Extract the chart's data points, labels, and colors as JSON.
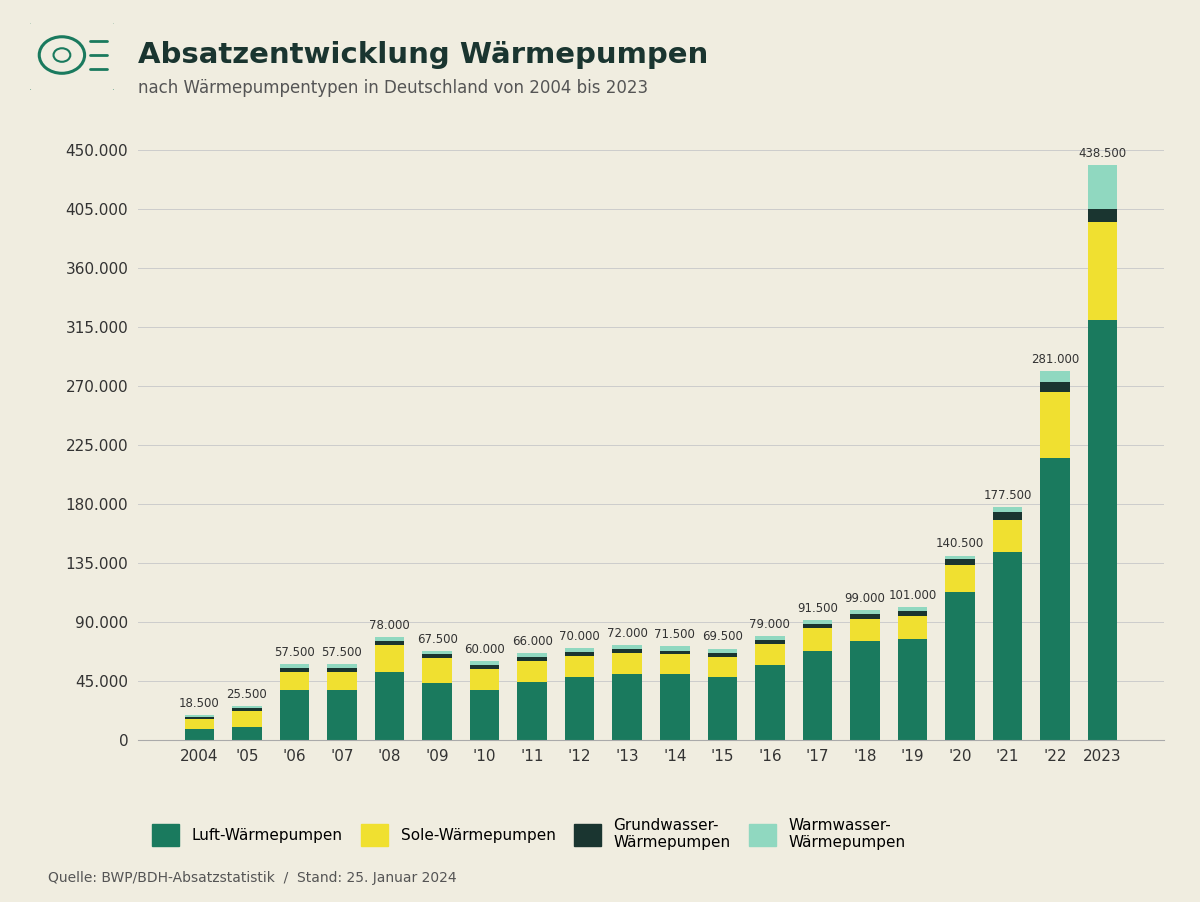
{
  "years": [
    "2004",
    "'05",
    "'06",
    "'07",
    "'08",
    "'09",
    "'10",
    "'11",
    "'12",
    "'13",
    "'14",
    "'15",
    "'16",
    "'17",
    "'18",
    "'19",
    "'20",
    "'21",
    "'22",
    "2023"
  ],
  "totals": [
    18500,
    25500,
    57500,
    57500,
    78000,
    67500,
    60000,
    66000,
    70000,
    72000,
    71500,
    69500,
    79000,
    91500,
    99000,
    101000,
    140500,
    177500,
    281000,
    438500
  ],
  "luft": [
    8000,
    10000,
    38000,
    38000,
    52000,
    43000,
    38000,
    44000,
    48000,
    50000,
    50000,
    48000,
    57000,
    68000,
    75000,
    77000,
    113000,
    143000,
    215000,
    320000
  ],
  "sole": [
    7500,
    12000,
    14000,
    14000,
    20000,
    19000,
    16000,
    16000,
    16000,
    16000,
    15000,
    15000,
    16000,
    17000,
    17000,
    17000,
    20000,
    25000,
    50000,
    75000
  ],
  "grundwasser": [
    1500,
    2000,
    3000,
    3000,
    3500,
    3000,
    3000,
    3000,
    3000,
    3000,
    3000,
    3000,
    3000,
    3500,
    4000,
    4000,
    4500,
    6000,
    8000,
    10000
  ],
  "warmwasser": [
    1500,
    1500,
    2500,
    2500,
    2500,
    2500,
    3000,
    3000,
    3000,
    3000,
    3500,
    3500,
    3000,
    3000,
    3000,
    3000,
    3000,
    3500,
    8000,
    33500
  ],
  "color_luft": "#1a7a5e",
  "color_sole": "#f0e030",
  "color_grundwasser": "#1a3530",
  "color_warmwasser": "#90d8c0",
  "background_color": "#f0ede0",
  "title": "Absatzentwicklung Wärmepumpen",
  "subtitle": "nach Wärmepumpentypen in Deutschland von 2004 bis 2023",
  "ylim": [
    0,
    475000
  ],
  "yticks": [
    0,
    45000,
    90000,
    135000,
    180000,
    225000,
    270000,
    315000,
    360000,
    405000,
    450000
  ],
  "source": "Quelle: BWP/BDH-Absatzstatistik  /  Stand: 25. Januar 2024",
  "legend_luft": "Luft-Wärmepumpen",
  "legend_sole": "Sole-Wärmepumpen",
  "legend_grundwasser": "Grundwasser-\nWärmepumpen",
  "legend_warmwasser": "Warmwasser-\nWärmepumpen"
}
